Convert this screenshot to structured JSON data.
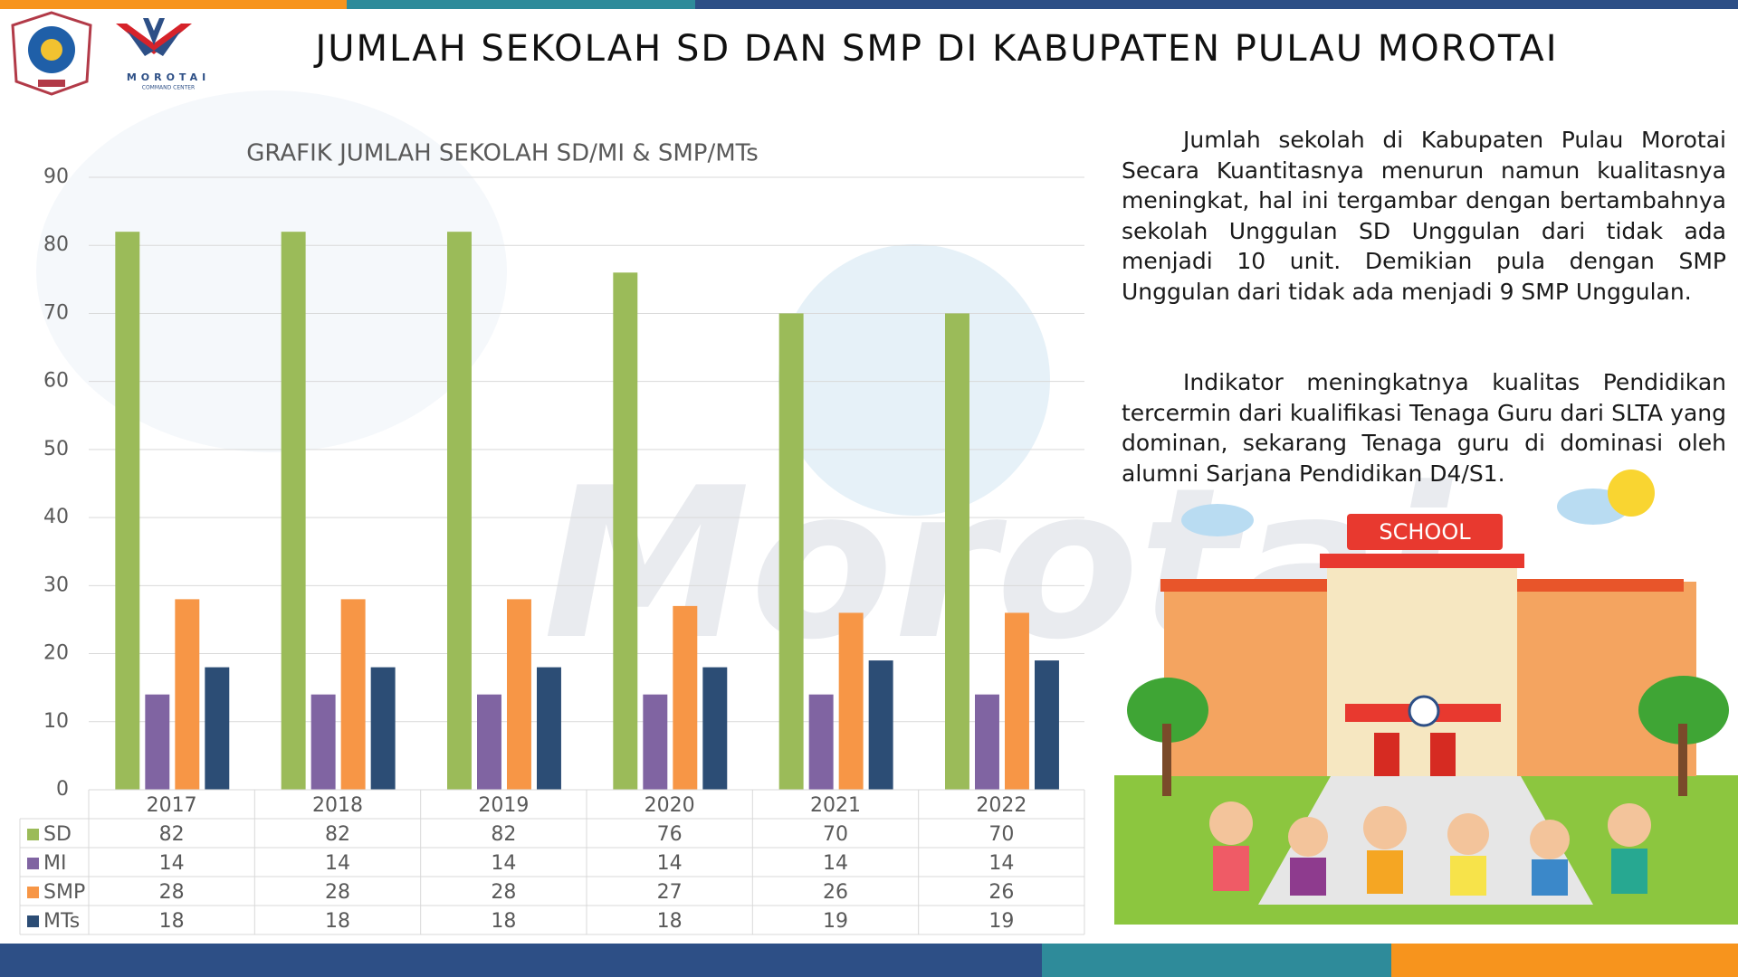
{
  "header": {
    "title": "JUMLAH SEKOLAH SD DAN SMP DI KABUPATEN PULAU MOROTAI"
  },
  "logo": {
    "name": "MOROTAI",
    "subtitle": "COMMAND CENTER"
  },
  "chart_data": {
    "type": "bar",
    "title": "GRAFIK JUMLAH SEKOLAH SD/MI & SMP/MTs",
    "categories": [
      "2017",
      "2018",
      "2019",
      "2020",
      "2021",
      "2022"
    ],
    "series": [
      {
        "name": "SD",
        "color": "#9bbb59",
        "values": [
          82,
          82,
          82,
          76,
          70,
          70
        ]
      },
      {
        "name": "MI",
        "color": "#8064a2",
        "values": [
          14,
          14,
          14,
          14,
          14,
          14
        ]
      },
      {
        "name": "SMP",
        "color": "#f79646",
        "values": [
          28,
          28,
          28,
          27,
          26,
          26
        ]
      },
      {
        "name": "MTs",
        "color": "#2c4d75",
        "values": [
          18,
          18,
          18,
          18,
          19,
          19
        ]
      }
    ],
    "ylim": [
      0,
      90
    ],
    "yticks": [
      0,
      10,
      20,
      30,
      40,
      50,
      60,
      70,
      80,
      90
    ],
    "grid": true,
    "data_table": true
  },
  "text": {
    "paragraphs": [
      "Jumlah sekolah di Kabupaten Pulau Morotai Secara Kuantitasnya menurun namun kualitasnya meningkat, hal ini tergambar dengan bertambahnya sekolah Unggulan SD Unggulan dari tidak ada menjadi 10 unit. Demikian pula dengan SMP Unggulan dari tidak ada menjadi 9 SMP Unggulan.",
      "Indikator meningkatnya kualitas Pendidikan tercermin dari kualifikasi Tenaga Guru dari SLTA yang dominan, sekarang Tenaga guru di dominasi oleh alumni Sarjana Pendidikan D4/S1."
    ]
  },
  "illustration": {
    "sign": "SCHOOL"
  }
}
